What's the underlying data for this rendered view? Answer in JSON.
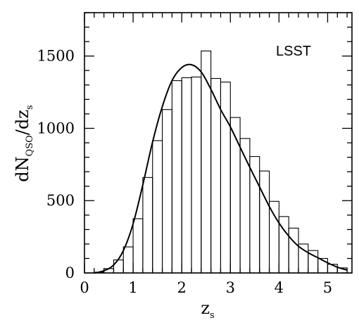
{
  "chart_data": {
    "type": "histogram",
    "annotation": "LSST",
    "xlabel": {
      "main": "z",
      "sub": "s"
    },
    "ylabel": {
      "parts": [
        {
          "text": "dN",
          "sub": false
        },
        {
          "text": "QSO",
          "sub": true
        },
        {
          "text": "/dz",
          "sub": false
        },
        {
          "text": "s",
          "sub": true
        }
      ]
    },
    "xlim": [
      0,
      5.5
    ],
    "ylim": [
      0,
      1800
    ],
    "xticks": [
      0,
      1,
      2,
      3,
      4,
      5
    ],
    "yticks": [
      0,
      500,
      1000,
      1500
    ],
    "x_tick_labels": [
      "0",
      "1",
      "2",
      "3",
      "4",
      "5"
    ],
    "y_tick_labels": [
      "0",
      "500",
      "1000",
      "1500"
    ],
    "x_minor_step": 0.2,
    "y_minor_step": 100,
    "grid": false,
    "histogram": {
      "bin_edges": [
        0.2,
        0.4,
        0.6,
        0.8,
        1.0,
        1.2,
        1.4,
        1.6,
        1.8,
        2.0,
        2.2,
        2.4,
        2.6,
        2.8,
        3.0,
        3.2,
        3.4,
        3.6,
        3.8,
        4.0,
        4.2,
        4.4,
        4.6,
        4.8,
        5.0,
        5.2,
        5.4
      ],
      "counts": [
        5,
        30,
        90,
        180,
        375,
        660,
        915,
        1130,
        1330,
        1350,
        1355,
        1535,
        1345,
        1320,
        1075,
        930,
        805,
        705,
        495,
        390,
        310,
        200,
        155,
        100,
        60,
        35
      ]
    },
    "curve": {
      "x": [
        0.2,
        0.4,
        0.6,
        0.8,
        1.0,
        1.2,
        1.4,
        1.6,
        1.8,
        2.0,
        2.2,
        2.4,
        2.6,
        2.8,
        3.0,
        3.2,
        3.4,
        3.6,
        3.8,
        4.0,
        4.2,
        4.4,
        4.6,
        4.8,
        5.0,
        5.2,
        5.4
      ],
      "y": [
        0,
        15,
        55,
        155,
        340,
        610,
        905,
        1150,
        1330,
        1420,
        1440,
        1390,
        1270,
        1130,
        1010,
        870,
        730,
        595,
        460,
        345,
        255,
        185,
        140,
        105,
        70,
        40,
        20
      ]
    }
  }
}
